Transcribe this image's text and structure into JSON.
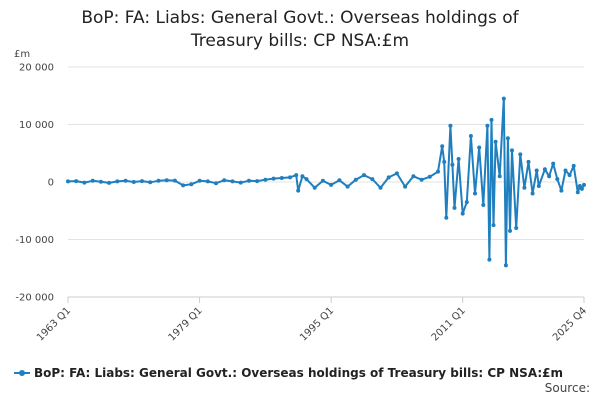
{
  "chart_data": {
    "type": "line",
    "title_lines": [
      "BoP: FA: Liabs: General Govt.: Overseas holdings of",
      "Treasury bills: CP NSA:£m"
    ],
    "unit": "£m",
    "ylim": [
      -20000,
      20000
    ],
    "y_ticks": [
      20000,
      10000,
      0,
      -10000,
      -20000
    ],
    "y_tick_labels": [
      "20 000",
      "10 000",
      "0",
      "-10 000",
      "-20 000"
    ],
    "x_tick_labels": [
      "1963 Q1",
      "1979 Q1",
      "1995 Q1",
      "2011 Q1",
      "2025 Q4"
    ],
    "x_ticks": [
      1963.0,
      1979.0,
      1995.0,
      2011.0,
      2025.75
    ],
    "xlim": [
      1963.0,
      2025.75
    ],
    "grid": true,
    "legend_position": "bottom",
    "series": [
      {
        "name": "BoP: FA: Liabs: General Govt.: Overseas holdings of Treasury bills: CP NSA:£m",
        "color": "#1f7fbf",
        "points": [
          [
            1963.0,
            100
          ],
          [
            1964.0,
            150
          ],
          [
            1965.0,
            -100
          ],
          [
            1966.0,
            200
          ],
          [
            1967.0,
            50
          ],
          [
            1968.0,
            -150
          ],
          [
            1969.0,
            100
          ],
          [
            1970.0,
            200
          ],
          [
            1971.0,
            0
          ],
          [
            1972.0,
            150
          ],
          [
            1973.0,
            -50
          ],
          [
            1974.0,
            200
          ],
          [
            1975.0,
            300
          ],
          [
            1976.0,
            250
          ],
          [
            1977.0,
            -600
          ],
          [
            1978.0,
            -400
          ],
          [
            1979.0,
            200
          ],
          [
            1980.0,
            100
          ],
          [
            1981.0,
            -200
          ],
          [
            1982.0,
            300
          ],
          [
            1983.0,
            100
          ],
          [
            1984.0,
            -100
          ],
          [
            1985.0,
            200
          ],
          [
            1986.0,
            150
          ],
          [
            1987.0,
            400
          ],
          [
            1988.0,
            600
          ],
          [
            1989.0,
            700
          ],
          [
            1990.0,
            800
          ],
          [
            1990.75,
            1200
          ],
          [
            1991.0,
            -1500
          ],
          [
            1991.5,
            1000
          ],
          [
            1992.0,
            500
          ],
          [
            1993.0,
            -1000
          ],
          [
            1994.0,
            200
          ],
          [
            1995.0,
            -500
          ],
          [
            1996.0,
            300
          ],
          [
            1997.0,
            -800
          ],
          [
            1998.0,
            400
          ],
          [
            1999.0,
            1200
          ],
          [
            2000.0,
            500
          ],
          [
            2001.0,
            -1000
          ],
          [
            2002.0,
            800
          ],
          [
            2003.0,
            1500
          ],
          [
            2004.0,
            -800
          ],
          [
            2005.0,
            1000
          ],
          [
            2006.0,
            400
          ],
          [
            2007.0,
            900
          ],
          [
            2008.0,
            1800
          ],
          [
            2008.5,
            6200
          ],
          [
            2008.75,
            3500
          ],
          [
            2009.0,
            -6200
          ],
          [
            2009.5,
            9800
          ],
          [
            2009.75,
            3000
          ],
          [
            2010.0,
            -4500
          ],
          [
            2010.5,
            4000
          ],
          [
            2011.0,
            -5500
          ],
          [
            2011.5,
            -3500
          ],
          [
            2012.0,
            8000
          ],
          [
            2012.5,
            -2000
          ],
          [
            2013.0,
            6000
          ],
          [
            2013.5,
            -4000
          ],
          [
            2014.0,
            9800
          ],
          [
            2014.25,
            -13500
          ],
          [
            2014.5,
            10800
          ],
          [
            2014.75,
            -7500
          ],
          [
            2015.0,
            7000
          ],
          [
            2015.5,
            1000
          ],
          [
            2016.0,
            14500
          ],
          [
            2016.25,
            -14500
          ],
          [
            2016.5,
            7600
          ],
          [
            2016.75,
            -8500
          ],
          [
            2017.0,
            5500
          ],
          [
            2017.5,
            -8000
          ],
          [
            2018.0,
            4800
          ],
          [
            2018.5,
            -1000
          ],
          [
            2019.0,
            3500
          ],
          [
            2019.5,
            -2000
          ],
          [
            2020.0,
            2000
          ],
          [
            2020.25,
            -700
          ],
          [
            2021.0,
            2200
          ],
          [
            2021.5,
            1000
          ],
          [
            2022.0,
            3200
          ],
          [
            2022.5,
            500
          ],
          [
            2023.0,
            -1500
          ],
          [
            2023.5,
            2000
          ],
          [
            2024.0,
            1200
          ],
          [
            2024.5,
            2800
          ],
          [
            2025.0,
            -1800
          ],
          [
            2025.25,
            -700
          ],
          [
            2025.5,
            -1200
          ],
          [
            2025.75,
            -500
          ]
        ]
      }
    ],
    "source_label": "Source:"
  }
}
